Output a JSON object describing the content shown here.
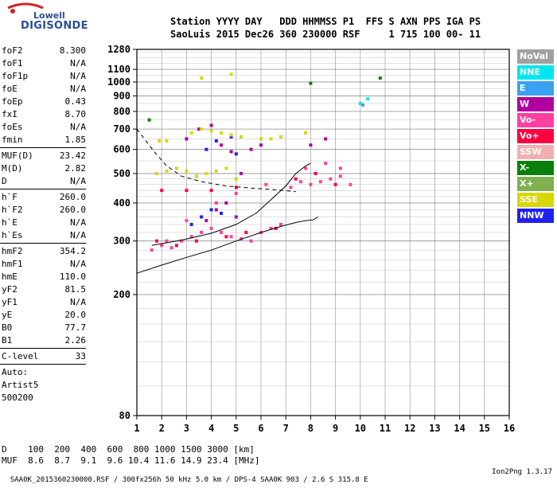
{
  "logo": {
    "top": "Lowell",
    "bottom": "DIGISONDE"
  },
  "header": {
    "line1": "Station YYYY DAY   DDD HHMMSS P1  FFS S AXN PPS IGA PS",
    "line2": "SaoLuis 2015 Dec26 360 230000 RSF     1 715 100 00- 11"
  },
  "params": [
    {
      "name": "foF2",
      "value": "8.300"
    },
    {
      "name": "foF1",
      "value": "N/A"
    },
    {
      "name": "foF1p",
      "value": "N/A"
    },
    {
      "name": "foE",
      "value": "N/A"
    },
    {
      "name": "foEp",
      "value": "0.43"
    },
    {
      "name": "fxI",
      "value": "8.70"
    },
    {
      "name": "foEs",
      "value": "N/A"
    },
    {
      "name": "fmin",
      "value": "1.85"
    },
    {
      "sep": true
    },
    {
      "name": "MUF(D)",
      "value": "23.42"
    },
    {
      "name": "M(D)",
      "value": "2.82"
    },
    {
      "name": "D",
      "value": "N/A"
    },
    {
      "sep": true
    },
    {
      "name": "h`F",
      "value": "260.0"
    },
    {
      "name": "h`F2",
      "value": "260.0"
    },
    {
      "name": "h`E",
      "value": "N/A"
    },
    {
      "name": "h`Es",
      "value": "N/A"
    },
    {
      "sep": true
    },
    {
      "name": "hmF2",
      "value": "354.2"
    },
    {
      "name": "hmF1",
      "value": "N/A"
    },
    {
      "name": "hmE",
      "value": "110.0"
    },
    {
      "name": "yF2",
      "value": "81.5"
    },
    {
      "name": "yF1",
      "value": "N/A"
    },
    {
      "name": "yE",
      "value": "20.0"
    },
    {
      "name": "B0",
      "value": "77.7"
    },
    {
      "name": "B1",
      "value": "2.26"
    },
    {
      "sep": true
    },
    {
      "name": "C-level",
      "value": "33"
    },
    {
      "sep": true
    }
  ],
  "auto": [
    "Auto:",
    "Artist5",
    "500200"
  ],
  "legend": [
    {
      "label": "NoVal",
      "color": "#a0a0a0"
    },
    {
      "label": "NNE",
      "color": "#00e6f0"
    },
    {
      "label": "E",
      "color": "#3aa0f0"
    },
    {
      "label": "W",
      "color": "#b000a0"
    },
    {
      "label": "Vo-",
      "color": "#ff40a0"
    },
    {
      "label": "Vo+",
      "color": "#ff0040"
    },
    {
      "label": "SSW",
      "color": "#f0b0b0"
    },
    {
      "label": "X-",
      "color": "#0a800a"
    },
    {
      "label": "X+",
      "color": "#80b050"
    },
    {
      "label": "SSE",
      "color": "#d8d800"
    },
    {
      "label": "NNW",
      "color": "#2020f0"
    }
  ],
  "muf_table": {
    "line1": "D    100  200  400  600  800 1000 1500 3000 [km]",
    "line2": "MUF  8.6  8.7  9.1  9.6 10.4 11.6 14.9 23.4 [MHz]"
  },
  "footer": {
    "left": "SAA0K_2015360230000.RSF / 300fx256h 50 kHz 5.0 km / DPS-4 SAA0K 903 / 2.6 S 315.8 E",
    "right": "Ion2Png 1.3.17"
  },
  "chart_data": {
    "type": "scatter",
    "title": "",
    "xlabel": "",
    "ylabel": "",
    "xlim": [
      1,
      16
    ],
    "ylim": [
      80,
      1280
    ],
    "x_ticks": [
      "1",
      "2",
      "3",
      "4",
      "5",
      "6",
      "7",
      "8",
      "9",
      "10",
      "11",
      "12",
      "13",
      "14",
      "15",
      "16"
    ],
    "y_ticks": [
      "80",
      "200",
      "300",
      "400",
      "500",
      "600",
      "700",
      "800",
      "900",
      "1000",
      "1100",
      "1280"
    ],
    "y_scale": "log",
    "grid": true,
    "series": [
      {
        "color": "#ff40a0",
        "points": [
          [
            1.6,
            280
          ],
          [
            2.0,
            290
          ],
          [
            2.4,
            285
          ],
          [
            2.8,
            300
          ],
          [
            3.2,
            310
          ],
          [
            3.6,
            320
          ],
          [
            4.0,
            330
          ],
          [
            4.4,
            320
          ],
          [
            4.8,
            310
          ],
          [
            5.2,
            305
          ],
          [
            5.6,
            300
          ],
          [
            6.0,
            320
          ],
          [
            6.4,
            330
          ],
          [
            6.8,
            340
          ],
          [
            7.2,
            450
          ],
          [
            7.6,
            470
          ],
          [
            8.0,
            460
          ],
          [
            8.4,
            470
          ],
          [
            8.8,
            480
          ],
          [
            9.2,
            490
          ],
          [
            9.6,
            460
          ],
          [
            2.2,
            300
          ],
          [
            3.0,
            350
          ],
          [
            4.2,
            400
          ],
          [
            5.0,
            430
          ],
          [
            6.2,
            460
          ],
          [
            7.8,
            520
          ],
          [
            8.6,
            540
          ],
          [
            9.2,
            520
          ]
        ]
      },
      {
        "color": "#ff0040",
        "points": [
          [
            1.8,
            300
          ],
          [
            2.6,
            290
          ],
          [
            3.4,
            300
          ],
          [
            4.6,
            310
          ],
          [
            5.4,
            320
          ],
          [
            6.6,
            330
          ],
          [
            7.4,
            480
          ],
          [
            8.2,
            500
          ],
          [
            9.0,
            460
          ],
          [
            2.0,
            440
          ],
          [
            3.0,
            440
          ],
          [
            4.0,
            440
          ],
          [
            5.0,
            450
          ]
        ]
      },
      {
        "color": "#b000a0",
        "points": [
          [
            3.0,
            650
          ],
          [
            3.5,
            700
          ],
          [
            4.0,
            720
          ],
          [
            4.4,
            620
          ],
          [
            4.8,
            590
          ],
          [
            5.2,
            500
          ],
          [
            3.8,
            350
          ],
          [
            4.2,
            380
          ],
          [
            4.6,
            400
          ],
          [
            5.0,
            360
          ],
          [
            5.6,
            600
          ],
          [
            6.0,
            620
          ],
          [
            8.0,
            620
          ],
          [
            8.6,
            650
          ]
        ]
      },
      {
        "color": "#2020f0",
        "points": [
          [
            3.2,
            340
          ],
          [
            3.6,
            360
          ],
          [
            4.0,
            380
          ],
          [
            4.4,
            370
          ],
          [
            3.8,
            600
          ],
          [
            4.2,
            640
          ],
          [
            4.8,
            660
          ],
          [
            5.0,
            580
          ]
        ]
      },
      {
        "color": "#d8d800",
        "points": [
          [
            1.8,
            500
          ],
          [
            2.2,
            510
          ],
          [
            2.6,
            520
          ],
          [
            3.0,
            510
          ],
          [
            3.4,
            490
          ],
          [
            3.8,
            500
          ],
          [
            4.2,
            510
          ],
          [
            4.6,
            520
          ],
          [
            5.0,
            480
          ],
          [
            3.2,
            680
          ],
          [
            3.6,
            700
          ],
          [
            4.0,
            690
          ],
          [
            4.4,
            680
          ],
          [
            4.8,
            670
          ],
          [
            5.2,
            660
          ],
          [
            6.0,
            650
          ],
          [
            6.4,
            650
          ],
          [
            6.8,
            660
          ],
          [
            2.2,
            640
          ],
          [
            1.9,
            640
          ],
          [
            4.8,
            1060
          ],
          [
            3.6,
            1030
          ],
          [
            7.8,
            680
          ]
        ]
      },
      {
        "color": "#00e6f0",
        "points": [
          [
            10.0,
            850
          ],
          [
            10.3,
            880
          ]
        ]
      },
      {
        "color": "#0a800a",
        "points": [
          [
            10.8,
            1030
          ],
          [
            8.0,
            990
          ],
          [
            1.5,
            750
          ]
        ]
      },
      {
        "color": "#3aa0f0",
        "points": [
          [
            10.1,
            840
          ]
        ]
      }
    ],
    "traces": [
      {
        "style": "dashed",
        "points": [
          [
            1.0,
            700
          ],
          [
            1.3,
            650
          ],
          [
            1.7,
            590
          ],
          [
            2.2,
            530
          ],
          [
            2.8,
            490
          ],
          [
            3.6,
            470
          ],
          [
            4.6,
            455
          ],
          [
            5.6,
            448
          ],
          [
            6.6,
            442
          ],
          [
            7.4,
            436
          ]
        ]
      },
      {
        "style": "solid",
        "points": [
          [
            1.0,
            235
          ],
          [
            2.0,
            250
          ],
          [
            3.0,
            265
          ],
          [
            4.0,
            280
          ],
          [
            5.0,
            300
          ],
          [
            6.0,
            320
          ],
          [
            6.8,
            335
          ],
          [
            7.4,
            345
          ],
          [
            7.8,
            350
          ],
          [
            8.1,
            352
          ],
          [
            8.3,
            360
          ]
        ]
      },
      {
        "style": "solid",
        "points": [
          [
            1.6,
            290
          ],
          [
            2.8,
            302
          ],
          [
            4.0,
            318
          ],
          [
            5.0,
            340
          ],
          [
            5.8,
            370
          ],
          [
            6.4,
            410
          ],
          [
            7.0,
            455
          ],
          [
            7.4,
            500
          ],
          [
            7.8,
            530
          ],
          [
            8.0,
            540
          ]
        ]
      }
    ]
  }
}
